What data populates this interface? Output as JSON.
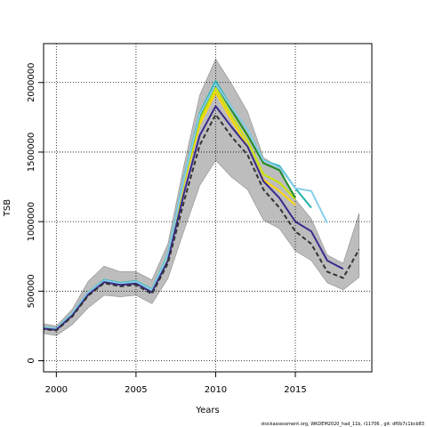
{
  "chart_data": {
    "type": "line",
    "xlabel": "Years",
    "ylabel": "TSB",
    "xlim": [
      1999.2,
      2019.8
    ],
    "ylim": [
      -80000,
      2280000
    ],
    "grid": true,
    "x_ticks": [
      2000,
      2005,
      2010,
      2015
    ],
    "x_tick_labels": [
      "2000",
      "2005",
      "2010",
      "2015"
    ],
    "y_ticks": [
      0,
      500000,
      1000000,
      1500000,
      2000000
    ],
    "y_tick_labels": [
      "0",
      "500000",
      "1000000",
      "1500000",
      "2000000"
    ],
    "band": {
      "x": [
        1999,
        2000,
        2001,
        2002,
        2003,
        2004,
        2005,
        2006,
        2007,
        2008,
        2009,
        2010,
        2011,
        2012,
        2013,
        2014,
        2015,
        2016,
        2017,
        2018,
        2019
      ],
      "upper": [
        270000,
        250000,
        370000,
        570000,
        680000,
        640000,
        640000,
        580000,
        840000,
        1400000,
        1910000,
        2170000,
        1990000,
        1790000,
        1460000,
        1390000,
        1160000,
        1020000,
        760000,
        700000,
        1060000
      ],
      "lower": [
        200000,
        180000,
        260000,
        380000,
        470000,
        460000,
        470000,
        410000,
        590000,
        930000,
        1260000,
        1440000,
        1320000,
        1230000,
        1010000,
        950000,
        790000,
        720000,
        560000,
        510000,
        600000
      ],
      "color": "#bdbdbd"
    },
    "series": [
      {
        "color": "#ffd700",
        "dash": "solid",
        "x": [
          1999,
          2000,
          2001,
          2002,
          2003,
          2004,
          2005,
          2006,
          2007,
          2008,
          2009,
          2010,
          2011,
          2012,
          2013,
          2014,
          2015
        ],
        "values": [
          235000,
          225000,
          330000,
          480000,
          570000,
          550000,
          560000,
          500000,
          740000,
          1270000,
          1700000,
          1930000,
          1730000,
          1540000,
          1300000,
          1220000,
          1120000
        ]
      },
      {
        "color": "#c8e600",
        "dash": "solid",
        "x": [
          1999,
          2000,
          2001,
          2002,
          2003,
          2004,
          2005,
          2006,
          2007,
          2008,
          2009,
          2010,
          2011,
          2012,
          2013,
          2014,
          2015
        ],
        "values": [
          238000,
          228000,
          335000,
          485000,
          575000,
          555000,
          565000,
          505000,
          750000,
          1290000,
          1730000,
          1960000,
          1760000,
          1580000,
          1340000,
          1280000,
          1160000
        ]
      },
      {
        "color": "#228b22",
        "dash": "solid",
        "x": [
          1999,
          2000,
          2001,
          2002,
          2003,
          2004,
          2005,
          2006,
          2007,
          2008,
          2009,
          2010,
          2011,
          2012,
          2013,
          2014,
          2015
        ],
        "values": [
          240000,
          230000,
          338000,
          488000,
          580000,
          558000,
          570000,
          510000,
          760000,
          1300000,
          1760000,
          1990000,
          1800000,
          1620000,
          1420000,
          1370000,
          1170000
        ]
      },
      {
        "color": "#20b2aa",
        "dash": "solid",
        "x": [
          1999,
          2000,
          2001,
          2002,
          2003,
          2004,
          2005,
          2006,
          2007,
          2008,
          2009,
          2010,
          2011,
          2012,
          2013,
          2014,
          2015,
          2016
        ],
        "values": [
          242000,
          232000,
          340000,
          490000,
          582000,
          560000,
          572000,
          512000,
          765000,
          1310000,
          1780000,
          2010000,
          1820000,
          1660000,
          1440000,
          1400000,
          1240000,
          1100000
        ]
      },
      {
        "color": "#87ceeb",
        "dash": "solid",
        "x": [
          1999,
          2000,
          2001,
          2002,
          2003,
          2004,
          2005,
          2006,
          2007,
          2008,
          2009,
          2010,
          2011,
          2012,
          2013,
          2014,
          2015,
          2016,
          2017
        ],
        "values": [
          240000,
          230000,
          338000,
          488000,
          578000,
          556000,
          568000,
          508000,
          758000,
          1300000,
          1770000,
          1990000,
          1820000,
          1660000,
          1440000,
          1390000,
          1240000,
          1220000,
          990000
        ]
      },
      {
        "color": "#3a2a8c",
        "dash": "solid",
        "x": [
          1999,
          2000,
          2001,
          2002,
          2003,
          2004,
          2005,
          2006,
          2007,
          2008,
          2009,
          2010,
          2011,
          2012,
          2013,
          2014,
          2015,
          2016,
          2017,
          2018
        ],
        "values": [
          232000,
          222000,
          325000,
          475000,
          565000,
          545000,
          555000,
          492000,
          720000,
          1200000,
          1620000,
          1830000,
          1680000,
          1540000,
          1290000,
          1170000,
          1000000,
          930000,
          720000,
          660000
        ]
      },
      {
        "color": "#333333",
        "dash": "dashed",
        "x": [
          1999,
          2000,
          2001,
          2002,
          2003,
          2004,
          2005,
          2006,
          2007,
          2008,
          2009,
          2010,
          2011,
          2012,
          2013,
          2014,
          2015,
          2016,
          2017,
          2018,
          2019
        ],
        "values": [
          228000,
          218000,
          318000,
          468000,
          558000,
          535000,
          545000,
          480000,
          700000,
          1140000,
          1550000,
          1770000,
          1610000,
          1480000,
          1230000,
          1100000,
          930000,
          840000,
          640000,
          595000,
          800000
        ]
      }
    ]
  },
  "footer": "stockassessment.org, WKDEM2020_had_11b, r11706 , git: df0b7c1bcb83"
}
